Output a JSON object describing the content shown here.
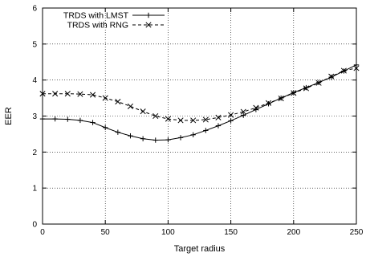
{
  "chart_data": {
    "type": "line",
    "title": "",
    "xlabel": "Target radius",
    "ylabel": "EER",
    "xlim": [
      0,
      250
    ],
    "ylim": [
      0,
      6
    ],
    "xticks": [
      0,
      50,
      100,
      150,
      200,
      250
    ],
    "yticks": [
      0,
      1,
      2,
      3,
      4,
      5,
      6
    ],
    "grid": true,
    "legend_position": "top-left",
    "x": [
      0,
      10,
      20,
      30,
      40,
      50,
      60,
      70,
      80,
      90,
      100,
      110,
      120,
      130,
      140,
      150,
      160,
      170,
      180,
      190,
      200,
      210,
      220,
      230,
      240,
      250
    ],
    "series": [
      {
        "name": "TRDS with LMST",
        "marker": "plus",
        "line": "solid",
        "values": [
          2.92,
          2.92,
          2.91,
          2.88,
          2.82,
          2.68,
          2.55,
          2.45,
          2.37,
          2.33,
          2.34,
          2.4,
          2.48,
          2.6,
          2.73,
          2.87,
          3.02,
          3.18,
          3.34,
          3.5,
          3.65,
          3.79,
          3.93,
          4.08,
          4.25,
          4.42
        ]
      },
      {
        "name": "TRDS with RNG",
        "marker": "x",
        "line": "dashed",
        "values": [
          3.62,
          3.62,
          3.62,
          3.61,
          3.59,
          3.5,
          3.4,
          3.27,
          3.13,
          3.0,
          2.92,
          2.88,
          2.88,
          2.9,
          2.96,
          3.03,
          3.12,
          3.23,
          3.36,
          3.49,
          3.64,
          3.77,
          3.92,
          4.1,
          4.26,
          4.33
        ]
      }
    ]
  }
}
